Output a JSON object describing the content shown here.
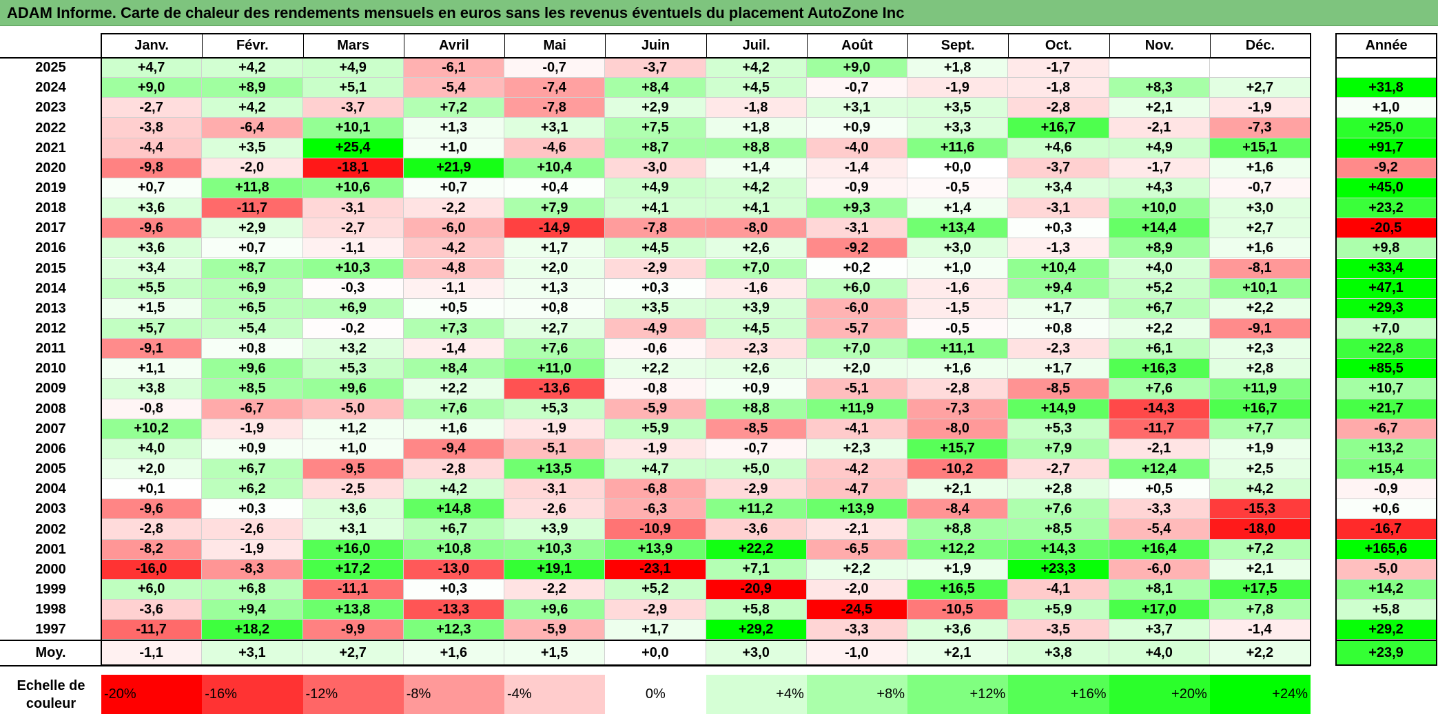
{
  "title": "ADAM Informe. Carte de chaleur des rendements mensuels en euros sans les revenus éventuels du placement AutoZone Inc",
  "chart_data": {
    "type": "heatmap",
    "title": "ADAM Informe. Carte de chaleur des rendements mensuels en euros sans les revenus éventuels du placement AutoZone Inc",
    "columns": [
      "Janv.",
      "Févr.",
      "Mars",
      "Avril",
      "Mai",
      "Juin",
      "Juil.",
      "Août",
      "Sept.",
      "Oct.",
      "Nov.",
      "Déc."
    ],
    "year_column_label": "Année",
    "rows": [
      {
        "year": "2025",
        "values": [
          "+4,7",
          "+4,2",
          "+4,9",
          "-6,1",
          "-0,7",
          "-3,7",
          "+4,2",
          "+9,0",
          "+1,8",
          "-1,7",
          "",
          ""
        ],
        "annual": ""
      },
      {
        "year": "2024",
        "values": [
          "+9,0",
          "+8,9",
          "+5,1",
          "-5,4",
          "-7,4",
          "+8,4",
          "+4,5",
          "-0,7",
          "-1,9",
          "-1,8",
          "+8,3",
          "+2,7"
        ],
        "annual": "+31,8"
      },
      {
        "year": "2023",
        "values": [
          "-2,7",
          "+4,2",
          "-3,7",
          "+7,2",
          "-7,8",
          "+2,9",
          "-1,8",
          "+3,1",
          "+3,5",
          "-2,8",
          "+2,1",
          "-1,9"
        ],
        "annual": "+1,0"
      },
      {
        "year": "2022",
        "values": [
          "-3,8",
          "-6,4",
          "+10,1",
          "+1,3",
          "+3,1",
          "+7,5",
          "+1,8",
          "+0,9",
          "+3,3",
          "+16,7",
          "-2,1",
          "-7,3"
        ],
        "annual": "+25,0"
      },
      {
        "year": "2021",
        "values": [
          "-4,4",
          "+3,5",
          "+25,4",
          "+1,0",
          "-4,6",
          "+8,7",
          "+8,8",
          "-4,0",
          "+11,6",
          "+4,6",
          "+4,9",
          "+15,1"
        ],
        "annual": "+91,7"
      },
      {
        "year": "2020",
        "values": [
          "-9,8",
          "-2,0",
          "-18,1",
          "+21,9",
          "+10,4",
          "-3,0",
          "+1,4",
          "-1,4",
          "+0,0",
          "-3,7",
          "-1,7",
          "+1,6"
        ],
        "annual": "-9,2"
      },
      {
        "year": "2019",
        "values": [
          "+0,7",
          "+11,8",
          "+10,6",
          "+0,7",
          "+0,4",
          "+4,9",
          "+4,2",
          "-0,9",
          "-0,5",
          "+3,4",
          "+4,3",
          "-0,7"
        ],
        "annual": "+45,0"
      },
      {
        "year": "2018",
        "values": [
          "+3,6",
          "-11,7",
          "-3,1",
          "-2,2",
          "+7,9",
          "+4,1",
          "+4,1",
          "+9,3",
          "+1,4",
          "-3,1",
          "+10,0",
          "+3,0"
        ],
        "annual": "+23,2"
      },
      {
        "year": "2017",
        "values": [
          "-9,6",
          "+2,9",
          "-2,7",
          "-6,0",
          "-14,9",
          "-7,8",
          "-8,0",
          "-3,1",
          "+13,4",
          "+0,3",
          "+14,4",
          "+2,7"
        ],
        "annual": "-20,5"
      },
      {
        "year": "2016",
        "values": [
          "+3,6",
          "+0,7",
          "-1,1",
          "-4,2",
          "+1,7",
          "+4,5",
          "+2,6",
          "-9,2",
          "+3,0",
          "-1,3",
          "+8,9",
          "+1,6"
        ],
        "annual": "+9,8"
      },
      {
        "year": "2015",
        "values": [
          "+3,4",
          "+8,7",
          "+10,3",
          "-4,8",
          "+2,0",
          "-2,9",
          "+7,0",
          "+0,2",
          "+1,0",
          "+10,4",
          "+4,0",
          "-8,1"
        ],
        "annual": "+33,4"
      },
      {
        "year": "2014",
        "values": [
          "+5,5",
          "+6,9",
          "-0,3",
          "-1,1",
          "+1,3",
          "+0,3",
          "-1,6",
          "+6,0",
          "-1,6",
          "+9,4",
          "+5,2",
          "+10,1"
        ],
        "annual": "+47,1"
      },
      {
        "year": "2013",
        "values": [
          "+1,5",
          "+6,5",
          "+6,9",
          "+0,5",
          "+0,8",
          "+3,5",
          "+3,9",
          "-6,0",
          "-1,5",
          "+1,7",
          "+6,7",
          "+2,2"
        ],
        "annual": "+29,3"
      },
      {
        "year": "2012",
        "values": [
          "+5,7",
          "+5,4",
          "-0,2",
          "+7,3",
          "+2,7",
          "-4,9",
          "+4,5",
          "-5,7",
          "-0,5",
          "+0,8",
          "+2,2",
          "-9,1"
        ],
        "annual": "+7,0"
      },
      {
        "year": "2011",
        "values": [
          "-9,1",
          "+0,8",
          "+3,2",
          "-1,4",
          "+7,6",
          "-0,6",
          "-2,3",
          "+7,0",
          "+11,1",
          "-2,3",
          "+6,1",
          "+2,3"
        ],
        "annual": "+22,8"
      },
      {
        "year": "2010",
        "values": [
          "+1,1",
          "+9,6",
          "+5,3",
          "+8,4",
          "+11,0",
          "+2,2",
          "+2,6",
          "+2,0",
          "+1,6",
          "+1,7",
          "+16,3",
          "+2,8"
        ],
        "annual": "+85,5"
      },
      {
        "year": "2009",
        "values": [
          "+3,8",
          "+8,5",
          "+9,6",
          "+2,2",
          "-13,6",
          "-0,8",
          "+0,9",
          "-5,1",
          "-2,8",
          "-8,5",
          "+7,6",
          "+11,9"
        ],
        "annual": "+10,7"
      },
      {
        "year": "2008",
        "values": [
          "-0,8",
          "-6,7",
          "-5,0",
          "+7,6",
          "+5,3",
          "-5,9",
          "+8,8",
          "+11,9",
          "-7,3",
          "+14,9",
          "-14,3",
          "+16,7"
        ],
        "annual": "+21,7"
      },
      {
        "year": "2007",
        "values": [
          "+10,2",
          "-1,9",
          "+1,2",
          "+1,6",
          "-1,9",
          "+5,9",
          "-8,5",
          "-4,1",
          "-8,0",
          "+5,3",
          "-11,7",
          "+7,7"
        ],
        "annual": "-6,7"
      },
      {
        "year": "2006",
        "values": [
          "+4,0",
          "+0,9",
          "+1,0",
          "-9,4",
          "-5,1",
          "-1,9",
          "-0,7",
          "+2,3",
          "+15,7",
          "+7,9",
          "-2,1",
          "+1,9"
        ],
        "annual": "+13,2"
      },
      {
        "year": "2005",
        "values": [
          "+2,0",
          "+6,7",
          "-9,5",
          "-2,8",
          "+13,5",
          "+4,7",
          "+5,0",
          "-4,2",
          "-10,2",
          "-2,7",
          "+12,4",
          "+2,5"
        ],
        "annual": "+15,4"
      },
      {
        "year": "2004",
        "values": [
          "+0,1",
          "+6,2",
          "-2,5",
          "+4,2",
          "-3,1",
          "-6,8",
          "-2,9",
          "-4,7",
          "+2,1",
          "+2,8",
          "+0,5",
          "+4,2"
        ],
        "annual": "-0,9"
      },
      {
        "year": "2003",
        "values": [
          "-9,6",
          "+0,3",
          "+3,6",
          "+14,8",
          "-2,6",
          "-6,3",
          "+11,2",
          "+13,9",
          "-8,4",
          "+7,6",
          "-3,3",
          "-15,3"
        ],
        "annual": "+0,6"
      },
      {
        "year": "2002",
        "values": [
          "-2,8",
          "-2,6",
          "+3,1",
          "+6,7",
          "+3,9",
          "-10,9",
          "-3,6",
          "-2,1",
          "+8,8",
          "+8,5",
          "-5,4",
          "-18,0"
        ],
        "annual": "-16,7"
      },
      {
        "year": "2001",
        "values": [
          "-8,2",
          "-1,9",
          "+16,0",
          "+10,8",
          "+10,3",
          "+13,9",
          "+22,2",
          "-6,5",
          "+12,2",
          "+14,3",
          "+16,4",
          "+7,2"
        ],
        "annual": "+165,6"
      },
      {
        "year": "2000",
        "values": [
          "-16,0",
          "-8,3",
          "+17,2",
          "-13,0",
          "+19,1",
          "-23,1",
          "+7,1",
          "+2,2",
          "+1,9",
          "+23,3",
          "-6,0",
          "+2,1"
        ],
        "annual": "-5,0"
      },
      {
        "year": "1999",
        "values": [
          "+6,0",
          "+6,8",
          "-11,1",
          "+0,3",
          "-2,2",
          "+5,2",
          "-20,9",
          "-2,0",
          "+16,5",
          "-4,1",
          "+8,1",
          "+17,5"
        ],
        "annual": "+14,2"
      },
      {
        "year": "1998",
        "values": [
          "-3,6",
          "+9,4",
          "+13,8",
          "-13,3",
          "+9,6",
          "-2,9",
          "+5,8",
          "-24,5",
          "-10,5",
          "+5,9",
          "+17,0",
          "+7,8"
        ],
        "annual": "+5,8"
      },
      {
        "year": "1997",
        "values": [
          "-11,7",
          "+18,2",
          "-9,9",
          "+12,3",
          "-5,9",
          "+1,7",
          "+29,2",
          "-3,3",
          "+3,6",
          "-3,5",
          "+3,7",
          "-1,4"
        ],
        "annual": "+29,2"
      }
    ],
    "average": {
      "label": "Moy.",
      "values": [
        "-1,1",
        "+3,1",
        "+2,7",
        "+1,6",
        "+1,5",
        "+0,0",
        "+3,0",
        "-1,0",
        "+2,1",
        "+3,8",
        "+4,0",
        "+2,2"
      ],
      "annual": "+23,9"
    },
    "color_scale": {
      "label_line1": "Echelle de",
      "label_line2": "couleur",
      "stops": [
        "-20%",
        "-16%",
        "-12%",
        "-8%",
        "-4%",
        "0%",
        "+4%",
        "+8%",
        "+12%",
        "+16%",
        "+20%",
        "+24%"
      ],
      "negative_color": "#ff0000",
      "neutral_color": "#ffffff",
      "positive_color": "#00ff00"
    }
  }
}
